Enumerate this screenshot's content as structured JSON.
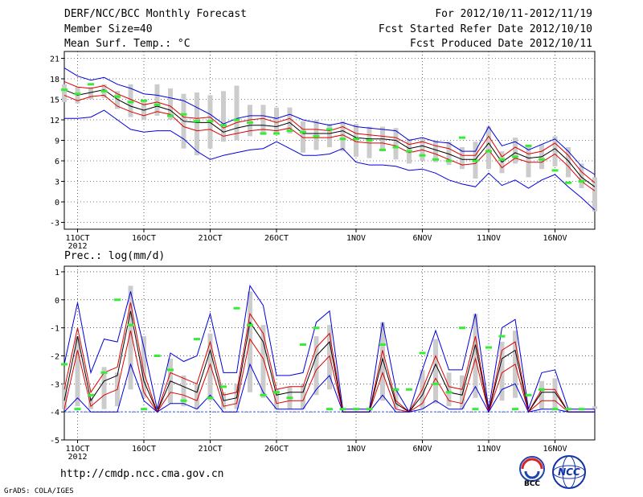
{
  "header": {
    "title": "DERF/NCC/BCC Monthly Forecast",
    "member_size": "Member Size=40",
    "variable": "Mean Surf. Temp.: °C",
    "period": "For 2012/10/11-2012/11/19",
    "fcst_started": "Fcst Started Refer Date 2012/10/10",
    "fcst_produced": "Fcst Produced Date 2012/10/11"
  },
  "footer": {
    "url": "http://cmdp.ncc.cma.gov.cn",
    "grads": "GrADS: COLA/IGES",
    "logo_left_text": "BCC",
    "logo_right_text": "NCC"
  },
  "colors": {
    "max": "#0000dd",
    "min": "#0000dd",
    "mean": "#000000",
    "spread": "#dd0000",
    "box": "#cccccc",
    "obs": "#33ee33",
    "base": "#3355ff"
  },
  "chart_data": [
    {
      "type": "line",
      "title": "Mean Surf. Temp.: °C",
      "ylim": [
        -4,
        22
      ],
      "yticks": [
        -3,
        0,
        3,
        6,
        9,
        12,
        15,
        18,
        21
      ],
      "xlim": [
        0,
        40
      ],
      "xticks": [
        {
          "day": 1,
          "label": "11OCT"
        },
        {
          "day": 6,
          "label": "16OCT"
        },
        {
          "day": 11,
          "label": "21OCT"
        },
        {
          "day": 16,
          "label": "26OCT"
        },
        {
          "day": 22,
          "label": "1NOV"
        },
        {
          "day": 27,
          "label": "6NOV"
        },
        {
          "day": 32,
          "label": "11NOV"
        },
        {
          "day": 37,
          "label": "16NOV"
        }
      ],
      "year_label": "2012",
      "grid": true,
      "series": [
        {
          "name": "max",
          "values": [
            19.6,
            18.4,
            17.8,
            18.2,
            17.2,
            16.6,
            15.8,
            15.6,
            15.2,
            14.8,
            13.8,
            12.8,
            11.4,
            12.2,
            12.6,
            12.6,
            12.2,
            12.8,
            12.0,
            11.6,
            11.2,
            11.6,
            11.0,
            10.8,
            10.6,
            10.4,
            9.0,
            9.4,
            8.8,
            8.6,
            7.4,
            7.4,
            11.0,
            8.2,
            8.8,
            7.6,
            8.4,
            9.2,
            7.4,
            5.2,
            4.0
          ]
        },
        {
          "name": "upper",
          "values": [
            17.6,
            16.8,
            16.6,
            17.0,
            15.8,
            15.0,
            14.2,
            14.6,
            14.0,
            12.4,
            12.2,
            12.4,
            10.8,
            11.6,
            12.0,
            12.2,
            11.6,
            12.2,
            10.6,
            10.6,
            10.4,
            11.0,
            10.0,
            9.8,
            9.6,
            9.4,
            8.4,
            8.8,
            8.2,
            7.8,
            6.8,
            6.8,
            9.6,
            6.6,
            8.0,
            7.0,
            7.4,
            8.6,
            6.8,
            4.4,
            2.8
          ]
        },
        {
          "name": "mean",
          "values": [
            16.4,
            15.6,
            16.0,
            16.4,
            15.0,
            14.0,
            13.4,
            14.0,
            13.4,
            11.8,
            11.6,
            11.6,
            10.2,
            10.8,
            11.2,
            11.2,
            11.0,
            11.6,
            10.0,
            10.0,
            10.0,
            10.4,
            9.4,
            9.2,
            9.2,
            9.0,
            7.8,
            8.2,
            7.6,
            7.0,
            6.2,
            6.2,
            8.6,
            5.8,
            7.2,
            6.4,
            6.6,
            7.8,
            6.0,
            3.6,
            2.2
          ]
        },
        {
          "name": "lower",
          "values": [
            15.6,
            14.8,
            15.4,
            15.6,
            14.0,
            13.2,
            12.6,
            13.2,
            12.8,
            11.0,
            10.4,
            10.6,
            9.6,
            10.0,
            10.4,
            10.6,
            10.4,
            10.8,
            9.4,
            9.4,
            9.4,
            9.8,
            8.8,
            8.6,
            8.6,
            8.2,
            7.2,
            7.6,
            7.0,
            6.2,
            5.4,
            5.6,
            7.6,
            5.0,
            6.4,
            5.8,
            5.8,
            7.0,
            5.2,
            3.0,
            1.6
          ]
        },
        {
          "name": "min",
          "values": [
            12.2,
            12.2,
            12.4,
            13.4,
            12.0,
            10.6,
            10.2,
            10.4,
            10.4,
            9.2,
            7.4,
            6.2,
            6.8,
            7.2,
            7.6,
            7.8,
            8.8,
            7.8,
            6.8,
            6.8,
            7.0,
            7.8,
            5.8,
            5.4,
            5.4,
            5.2,
            4.6,
            4.8,
            4.2,
            3.2,
            2.6,
            2.2,
            4.2,
            2.4,
            3.2,
            2.0,
            3.2,
            4.0,
            2.2,
            0.6,
            -1.2
          ]
        }
      ],
      "box_ranges": [
        [
          14.6,
          17.2
        ],
        [
          14.4,
          16.8
        ],
        [
          15.0,
          16.8
        ],
        [
          15.2,
          17.2
        ],
        [
          13.6,
          16.2
        ],
        [
          12.4,
          17.2
        ],
        [
          12.0,
          14.8
        ],
        [
          12.6,
          17.2
        ],
        [
          12.0,
          16.6
        ],
        [
          7.8,
          15.8
        ],
        [
          6.8,
          16.0
        ],
        [
          7.8,
          15.6
        ],
        [
          8.8,
          16.2
        ],
        [
          9.0,
          17.0
        ],
        [
          9.6,
          14.2
        ],
        [
          9.8,
          14.2
        ],
        [
          10.0,
          13.8
        ],
        [
          10.0,
          13.8
        ],
        [
          7.2,
          11.8
        ],
        [
          7.6,
          12.0
        ],
        [
          8.0,
          11.4
        ],
        [
          7.4,
          11.8
        ],
        [
          6.6,
          11.4
        ],
        [
          6.4,
          11.0
        ],
        [
          7.4,
          11.0
        ],
        [
          6.2,
          10.8
        ],
        [
          5.6,
          9.2
        ],
        [
          6.0,
          9.2
        ],
        [
          5.8,
          9.0
        ],
        [
          5.4,
          8.8
        ],
        [
          4.8,
          8.0
        ],
        [
          3.4,
          8.8
        ],
        [
          4.8,
          11.0
        ],
        [
          4.2,
          7.4
        ],
        [
          5.6,
          9.4
        ],
        [
          3.6,
          8.2
        ],
        [
          4.8,
          8.4
        ],
        [
          5.2,
          9.6
        ],
        [
          3.6,
          8.0
        ],
        [
          2.0,
          5.6
        ],
        [
          -1.4,
          3.6
        ]
      ],
      "obs": [
        16.4,
        15.8,
        17.2,
        16.2,
        15.4,
        14.6,
        14.8,
        14.2,
        12.6,
        12.8,
        11.8,
        11.8,
        11.2,
        12.0,
        11.6,
        10.0,
        10.0,
        10.4,
        10.2,
        9.6,
        10.6,
        9.2,
        9.2,
        9.0,
        7.6,
        8.0,
        7.4,
        6.8,
        6.2,
        6.0,
        9.4,
        6.0,
        7.4,
        6.2,
        6.6,
        8.2,
        6.2,
        4.6,
        2.8,
        3.0
      ]
    },
    {
      "type": "line",
      "title": "Prec.: log(mm/d)",
      "ylim": [
        -5,
        1.2
      ],
      "yticks": [
        -5,
        -4,
        -3,
        -2,
        -1,
        0,
        1
      ],
      "xlim": [
        0,
        40
      ],
      "xticks": [
        {
          "day": 1,
          "label": "11OCT"
        },
        {
          "day": 6,
          "label": "16OCT"
        },
        {
          "day": 11,
          "label": "21OCT"
        },
        {
          "day": 16,
          "label": "26OCT"
        },
        {
          "day": 22,
          "label": "1NOV"
        },
        {
          "day": 27,
          "label": "6NOV"
        },
        {
          "day": 32,
          "label": "11NOV"
        },
        {
          "day": 37,
          "label": "16NOV"
        }
      ],
      "year_label": "2012",
      "grid": true,
      "series": [
        {
          "name": "max",
          "values": [
            -2.3,
            -0.1,
            -2.6,
            -1.4,
            -1.5,
            0.3,
            -1.7,
            -3.9,
            -1.9,
            -2.2,
            -2.0,
            -0.5,
            -2.6,
            -2.6,
            0.5,
            -0.2,
            -2.7,
            -2.7,
            -2.6,
            -0.8,
            -0.4,
            -3.9,
            -3.9,
            -3.9,
            -0.8,
            -3.2,
            -4.0,
            -2.5,
            -1.1,
            -2.5,
            -2.5,
            -0.5,
            -3.9,
            -1.0,
            -0.7,
            -3.9,
            -2.6,
            -2.5,
            -3.9,
            -3.9,
            -3.9
          ]
        },
        {
          "name": "upper",
          "values": [
            -3.2,
            -1.0,
            -3.3,
            -2.6,
            -2.4,
            -0.1,
            -2.6,
            -4.0,
            -2.6,
            -2.8,
            -3.0,
            -1.5,
            -3.4,
            -3.3,
            -0.5,
            -1.2,
            -3.2,
            -3.1,
            -3.1,
            -1.7,
            -1.2,
            -4.0,
            -4.0,
            -4.0,
            -1.8,
            -3.6,
            -4.0,
            -3.2,
            -2.0,
            -3.1,
            -3.2,
            -1.3,
            -4.0,
            -1.8,
            -1.5,
            -4.0,
            -3.2,
            -3.2,
            -4.0,
            -4.0,
            -4.0
          ]
        },
        {
          "name": "mean",
          "values": [
            -3.6,
            -1.3,
            -3.6,
            -2.9,
            -2.7,
            -0.4,
            -2.9,
            -4.0,
            -2.9,
            -3.1,
            -3.3,
            -1.8,
            -3.6,
            -3.5,
            -0.8,
            -1.5,
            -3.4,
            -3.3,
            -3.3,
            -2.0,
            -1.5,
            -4.0,
            -4.0,
            -4.0,
            -2.1,
            -3.7,
            -4.0,
            -3.4,
            -2.3,
            -3.3,
            -3.4,
            -1.6,
            -4.0,
            -2.1,
            -1.8,
            -4.0,
            -3.3,
            -3.3,
            -4.0,
            -4.0,
            -4.0
          ]
        },
        {
          "name": "lower",
          "values": [
            -3.9,
            -1.8,
            -3.8,
            -3.4,
            -3.2,
            -1.1,
            -3.3,
            -4.0,
            -3.3,
            -3.4,
            -3.6,
            -2.3,
            -3.8,
            -3.7,
            -1.4,
            -2.1,
            -3.7,
            -3.6,
            -3.6,
            -2.5,
            -2.0,
            -4.0,
            -4.0,
            -4.0,
            -2.6,
            -3.9,
            -4.0,
            -3.7,
            -2.8,
            -3.6,
            -3.7,
            -2.1,
            -4.0,
            -2.6,
            -2.3,
            -4.0,
            -3.6,
            -3.6,
            -4.0,
            -4.0,
            -4.0
          ]
        },
        {
          "name": "min",
          "values": [
            -4.0,
            -3.5,
            -4.0,
            -4.0,
            -4.0,
            -2.3,
            -3.6,
            -4.0,
            -3.7,
            -3.7,
            -3.9,
            -3.4,
            -4.0,
            -4.0,
            -2.3,
            -3.3,
            -3.9,
            -3.9,
            -3.9,
            -3.2,
            -2.7,
            -4.0,
            -4.0,
            -4.0,
            -3.4,
            -4.0,
            -4.0,
            -3.9,
            -3.6,
            -3.9,
            -3.9,
            -3.1,
            -4.0,
            -3.2,
            -3.0,
            -4.0,
            -3.9,
            -3.9,
            -4.0,
            -4.0,
            -4.0
          ]
        }
      ],
      "box_ranges": [
        [
          -3.9,
          -3.0
        ],
        [
          -3.8,
          -1.3
        ],
        [
          -3.9,
          -3.5
        ],
        [
          -3.9,
          -2.4
        ],
        [
          -3.8,
          -2.6
        ],
        [
          -3.2,
          0.5
        ],
        [
          -3.5,
          -1.3
        ],
        [
          -3.9,
          -3.8
        ],
        [
          -3.7,
          -2.1
        ],
        [
          -3.8,
          -2.7
        ],
        [
          -3.9,
          -3.0
        ],
        [
          -3.6,
          -1.2
        ],
        [
          -3.9,
          -3.3
        ],
        [
          -3.9,
          -3.0
        ],
        [
          -3.3,
          0.3
        ],
        [
          -3.5,
          -0.9
        ],
        [
          -3.9,
          -3.2
        ],
        [
          -3.9,
          -3.1
        ],
        [
          -3.9,
          -3.0
        ],
        [
          -3.4,
          -1.3
        ],
        [
          -3.2,
          -0.9
        ],
        [
          -3.9,
          -3.9
        ],
        [
          -3.9,
          -3.9
        ],
        [
          -3.9,
          -3.9
        ],
        [
          -3.6,
          -0.8
        ],
        [
          -3.9,
          -3.2
        ],
        [
          -3.9,
          -3.9
        ],
        [
          -3.9,
          -2.5
        ],
        [
          -3.7,
          -1.4
        ],
        [
          -3.8,
          -2.6
        ],
        [
          -3.9,
          -2.7
        ],
        [
          -3.5,
          -0.5
        ],
        [
          -3.9,
          -3.9
        ],
        [
          -3.6,
          -1.5
        ],
        [
          -3.5,
          -1.1
        ],
        [
          -3.9,
          -3.9
        ],
        [
          -3.9,
          -2.9
        ],
        [
          -3.9,
          -2.8
        ],
        [
          -3.9,
          -3.9
        ],
        [
          -3.9,
          -3.9
        ],
        [
          -3.9,
          -3.8
        ]
      ],
      "obs": [
        -2.3,
        -3.9,
        -3.4,
        -2.6,
        0.0,
        -0.9,
        -3.9,
        -2.0,
        -2.5,
        -3.6,
        -1.4,
        -3.5,
        -3.1,
        -0.3,
        -0.9,
        -3.4,
        -3.3,
        -3.5,
        -1.6,
        -1.0,
        -3.9,
        -3.9,
        -3.9,
        -3.9,
        -1.6,
        -3.2,
        -3.2,
        -1.9,
        -3.0,
        -3.3,
        -1.0,
        -3.9,
        -1.7,
        -1.3,
        -3.9,
        -3.4,
        -3.2,
        -3.9,
        -3.9,
        -3.9
      ]
    }
  ]
}
